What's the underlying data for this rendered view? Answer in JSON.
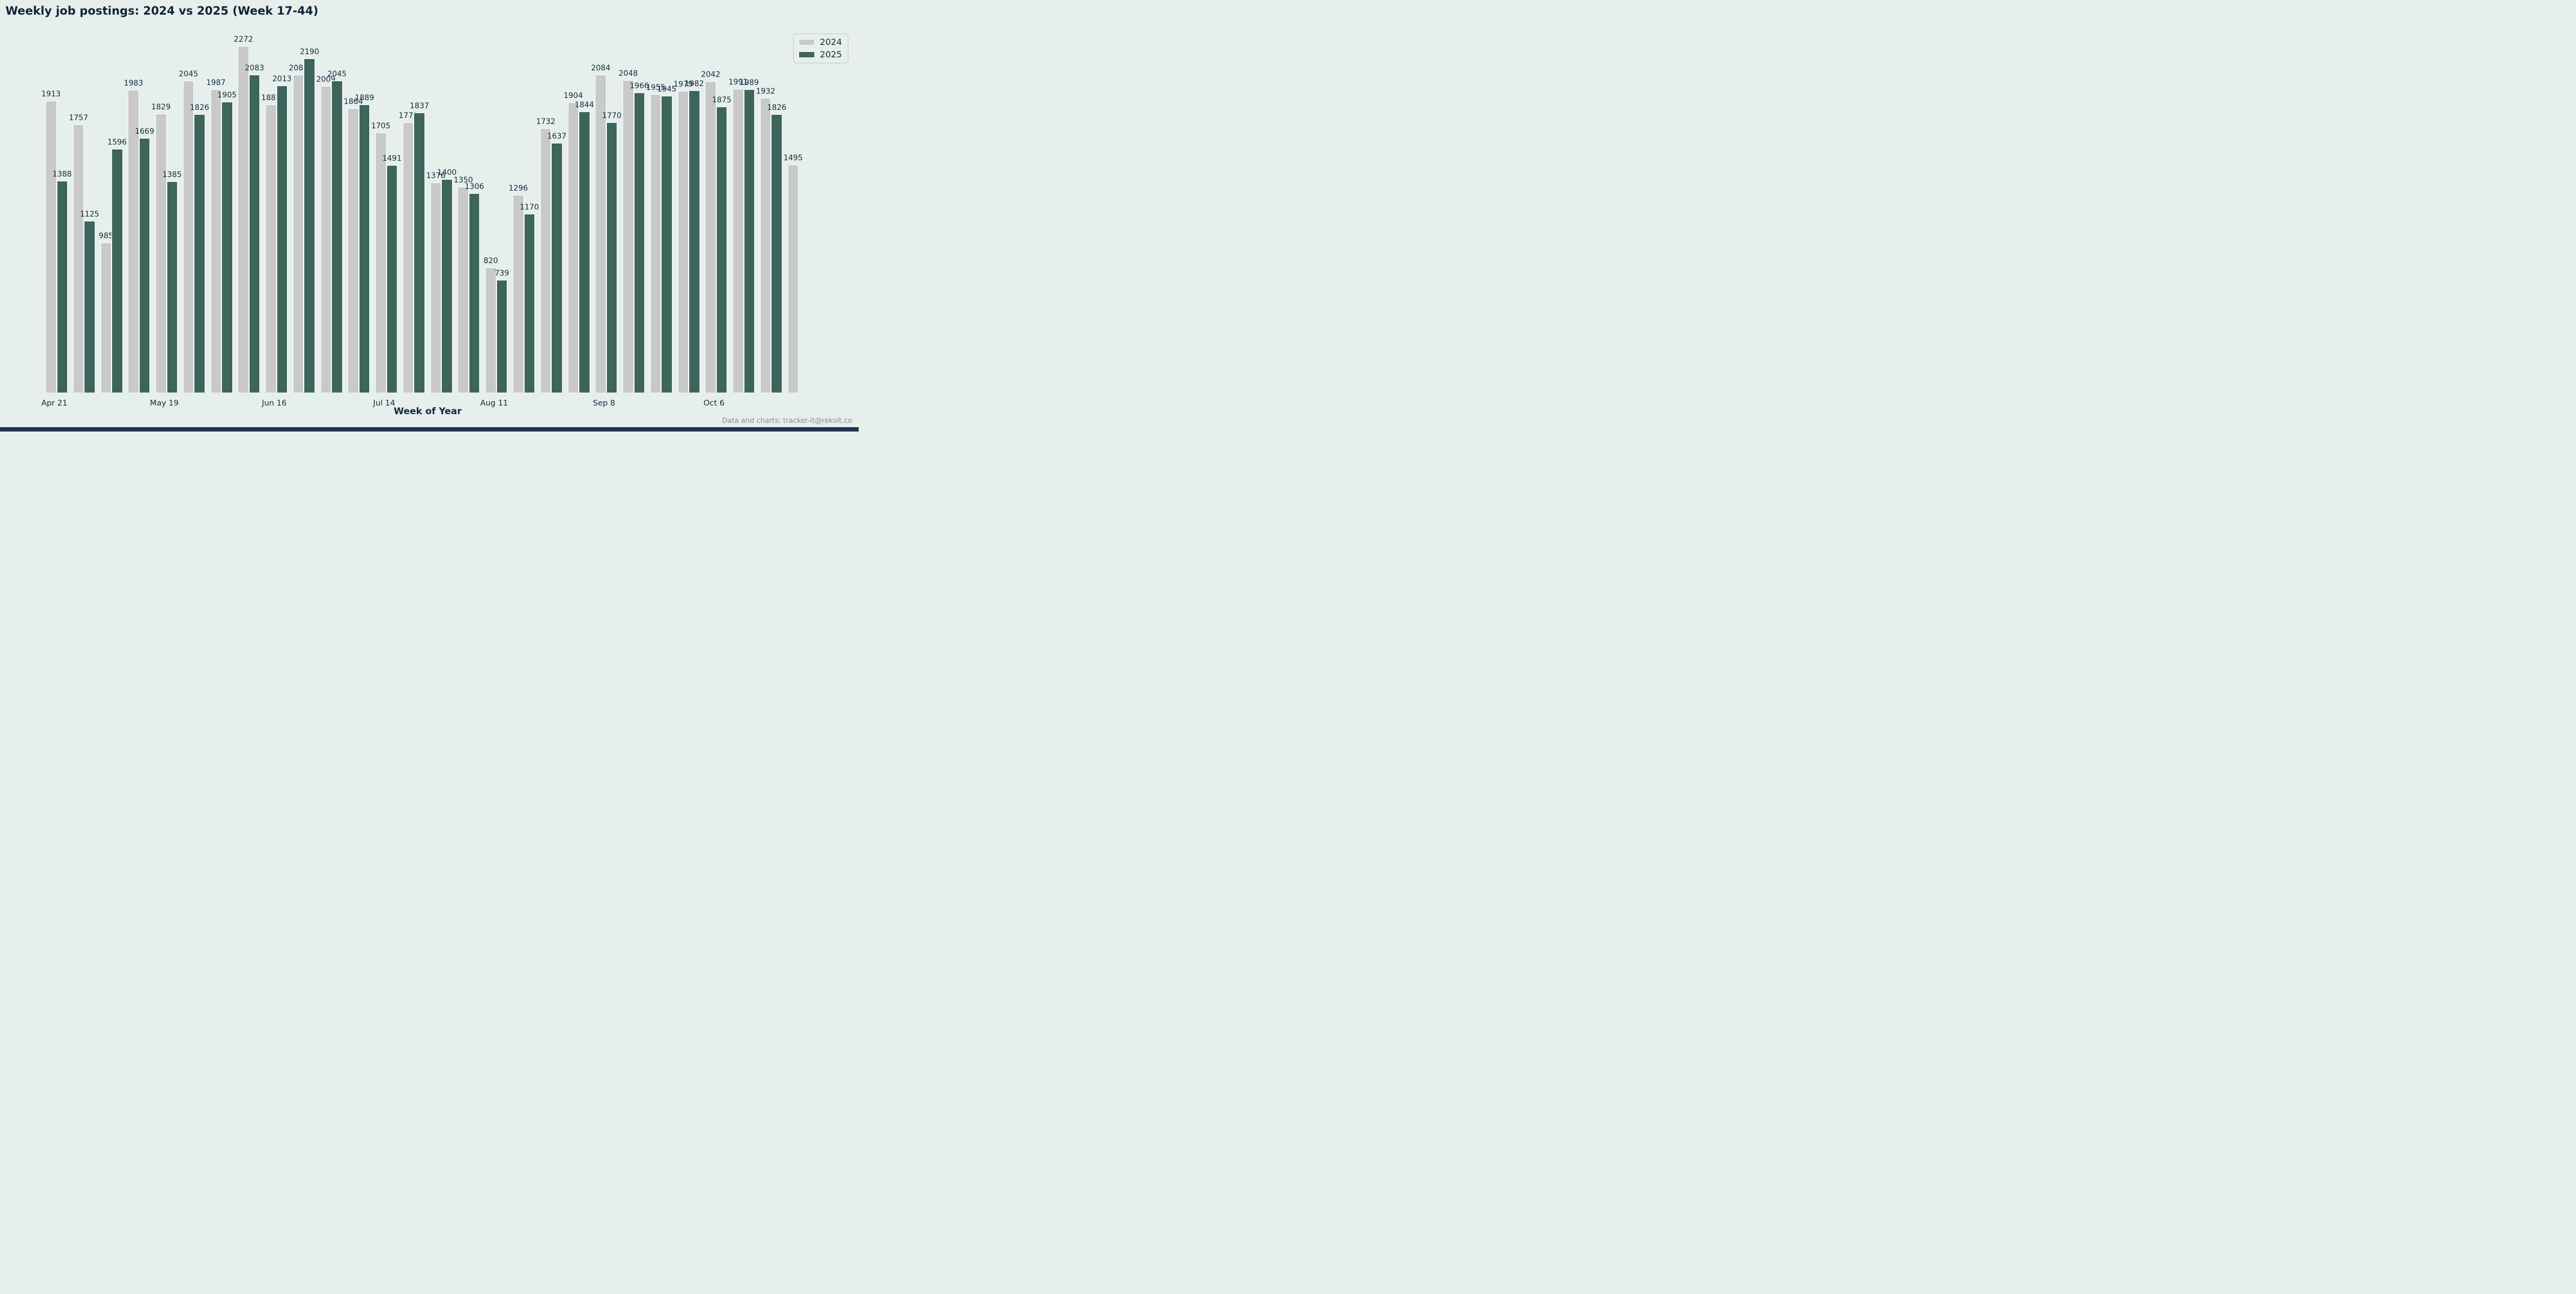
{
  "title": "Weekly job postings: 2024 vs 2025 (Week 17-44)",
  "legend": {
    "items": [
      {
        "label": "2024",
        "color": "#c9c9c9"
      },
      {
        "label": "2025",
        "color": "#3d655c"
      }
    ]
  },
  "footer": "Data and charts: tracker-it@rekolt.co",
  "colors": {
    "background": "#e6efeb",
    "bar_2024": "#c9c9c9",
    "bar_2025": "#3d655c",
    "text": "#13293e",
    "footer_text": "#8c8c8c",
    "bottom_strip": "#22324f"
  },
  "chart_data": {
    "type": "bar",
    "title": "Weekly job postings: 2024 vs 2025 (Week 17-44)",
    "xlabel": "Week of Year",
    "ylabel": "",
    "grid": false,
    "legend_position": "top-right",
    "week_range": [
      17,
      44
    ],
    "ylim": [
      0,
      2400
    ],
    "x_ticks": [
      {
        "index": 0,
        "label": "Apr 21"
      },
      {
        "index": 4,
        "label": "May 19"
      },
      {
        "index": 8,
        "label": "Jun 16"
      },
      {
        "index": 12,
        "label": "Jul 14"
      },
      {
        "index": 16,
        "label": "Aug 11"
      },
      {
        "index": 20,
        "label": "Sep 8"
      },
      {
        "index": 24,
        "label": "Oct 6"
      }
    ],
    "series": [
      {
        "name": "2024",
        "color": "#c9c9c9",
        "values": [
          1913,
          1757,
          985,
          1983,
          1829,
          2045,
          1987,
          2272,
          1887,
          2083,
          2009,
          1864,
          1705,
          1772,
          1376,
          1350,
          820,
          1296,
          1732,
          1904,
          2084,
          2048,
          1955,
          1979,
          2042,
          1991,
          1932,
          1495
        ]
      },
      {
        "name": "2025",
        "color": "#3d655c",
        "values": [
          1388,
          1125,
          1596,
          1669,
          1385,
          1826,
          1905,
          2083,
          2013,
          2190,
          2045,
          1889,
          1491,
          1837,
          1400,
          1306,
          739,
          1170,
          1637,
          1844,
          1770,
          1966,
          1945,
          1982,
          1875,
          1989,
          1826,
          null
        ]
      }
    ]
  }
}
